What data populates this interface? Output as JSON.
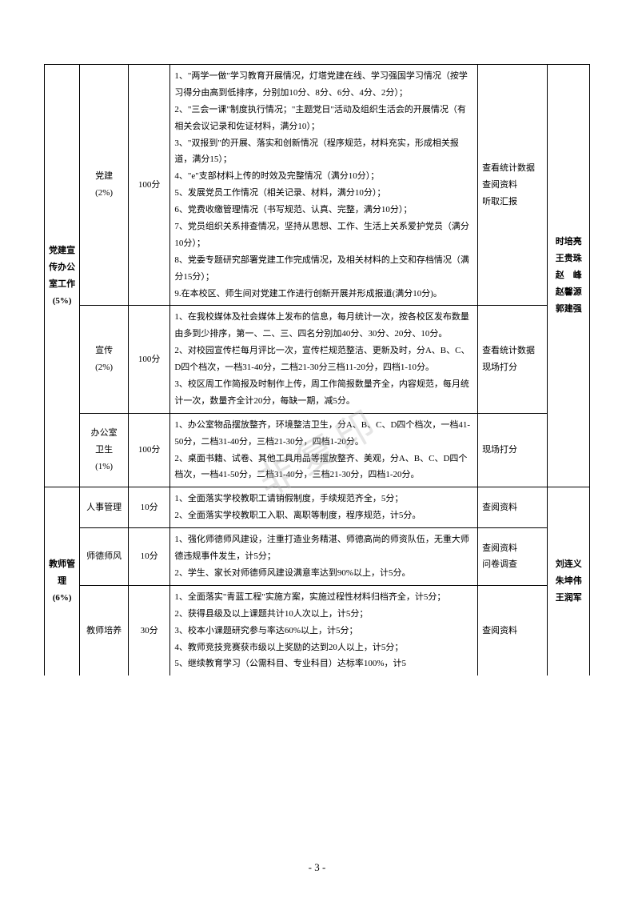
{
  "watermark": "非复印",
  "pageNumber": "- 3 -",
  "table": {
    "group1": {
      "category": "党建宣传办公室工作(5%)",
      "persons": "时培亮\n王贵珠\n赵　峰\n赵馨源\n郭建强",
      "rows": [
        {
          "sub": "党建\n(2%)",
          "score": "100分",
          "content": "1、\"两学一做\"学习教育开展情况，灯塔党建在线、学习强国学习情况（按学习得分由高到低排序，分别加10分、8分、6分、4分、2分）；\n2、\"三会一课\"制度执行情况；\"主题党日\"活动及组织生活会的开展情况（有相关会议记录和佐证材料，满分10）；\n3、\"双报到\"的开展、落实和创新情况（程序规范，材料充实，形成相关报道，满分15）；\n4、\"e\"支部材料上传的时效及完整情况（满分10分）；\n5、发展党员工作情况（相关记录、材料，满分10分）；\n6、党费收缴管理情况（书写规范、认真、完整，满分10分）；\n7、党员组织关系排查情况，坚持从思想、工作、生活上关系爱护党员（满分10分）；\n8、党委专题研究部署党建工作完成情况，及相关材料的上交和存档情况（满分15分）；\n9.在本校区、师生间对党建工作进行创新开展并形成报道(满分10分)。",
          "method": "查看统计数据\n查阅资料\n听取汇报"
        },
        {
          "sub": "宣传\n(2%)",
          "score": "100分",
          "content": "1、在我校媒体及社会媒体上发布的信息，每月统计一次，按各校区发布数量由多到少排序，第一、二、三、四名分别加40分、30分、20分、10分。\n2、对校园宣传栏每月评比一次，宣传栏规范整洁、更新及时，分A、B、C、D四个档次，一档31-40分，二档21-30分三档11-20分，四档1-10分。\n3、校区周工作简报及时制作上传，周工作简报数量齐全，内容规范，每月统计一次，数量齐全计20分，每缺一期，减5分。",
          "method": "查看统计数据\n现场打分"
        },
        {
          "sub": "办公室\n卫生\n(1%)",
          "score": "100分",
          "content": "1、办公室物品摆放整齐，环境整洁卫生，分A、B、C、D四个档次，一档41-50分，二档31-40分，三档21-30分，四档1-20分。\n2、桌面书籍、试卷、其他工具用品等摆放整齐、美观，分A、B、C、D四个档次，一档41-50分，二档31-40分，三档21-30分，四档1-20分。",
          "method": "现场打分"
        }
      ]
    },
    "group2": {
      "category": "教师管理(6%)",
      "persons": "刘连义\n朱坤伟\n王润军",
      "rows": [
        {
          "sub": "人事管理",
          "score": "10分",
          "content": "1、全面落实学校教职工请销假制度，手续规范齐全，5分；\n2、全面落实学校教职工入职、离职等制度，程序规范，计5分。",
          "method": "查阅资料"
        },
        {
          "sub": "师德师风",
          "score": "10分",
          "content": "1、强化师德师风建设，注重打造业务精湛、师德高尚的师资队伍，无重大师德违规事件发生，计5分；\n2、学生、家长对师德师风建设满意率达到90%以上，计5分。",
          "method": "查阅资料\n问卷调查"
        },
        {
          "sub": "教师培养",
          "score": "30分",
          "content": "1、全面落实\"青蓝工程\"实施方案，实施过程性材料归档齐全，计5分；\n2、获得县级及以上课题共计10人次以上，计5分；\n3、校本小课题研究参与率达60%以上，计5分；\n4、教师竞技竞赛获市级以上奖励的达到20人以上，计5分；\n5、继续教育学习（公需科目、专业科目）达标率100%，计5",
          "method": "查阅资料"
        }
      ]
    }
  }
}
